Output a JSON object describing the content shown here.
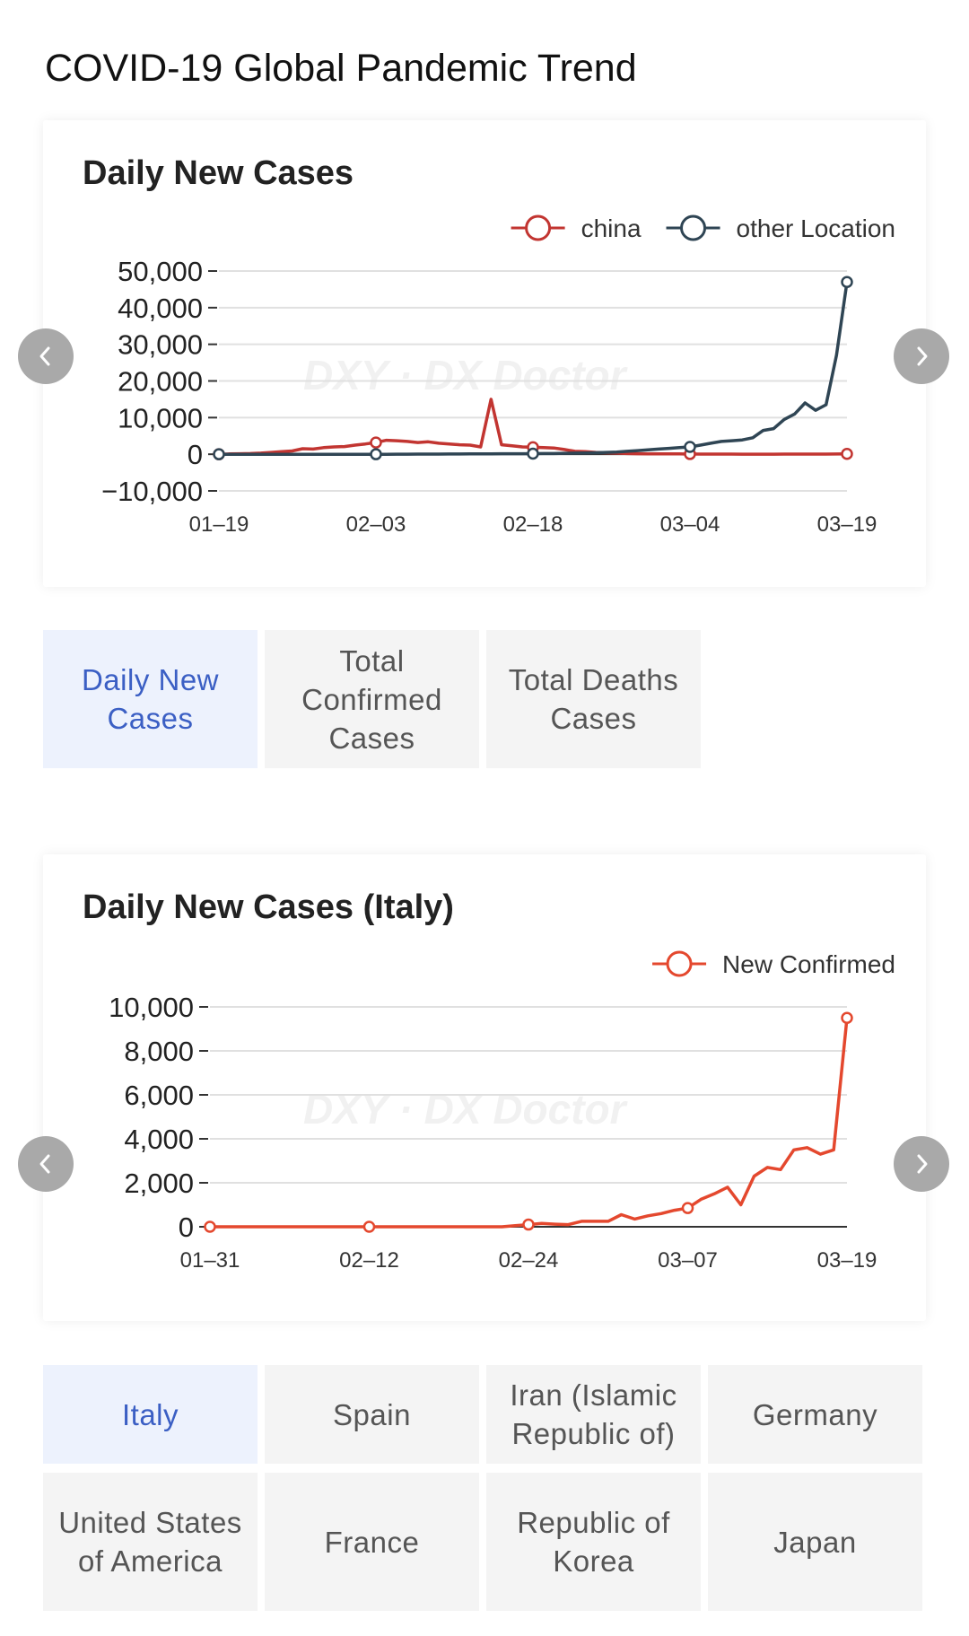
{
  "page": {
    "title": "COVID-19 Global Pandemic Trend"
  },
  "watermark": "DXY · DX Doctor",
  "chart1": {
    "title": "Daily New Cases",
    "colors": {
      "china": "#c23531",
      "other": "#2f4554"
    }
  },
  "chart2": {
    "title": "Daily New Cases (Italy)",
    "colors": {
      "new_confirmed": "#e4482e"
    }
  },
  "metric_tabs": [
    {
      "label": "Daily New Cases",
      "active": true
    },
    {
      "label": "Total Confirmed Cases",
      "active": false
    },
    {
      "label": "Total Deaths Cases",
      "active": false
    }
  ],
  "country_tabs": [
    {
      "label": "Italy",
      "active": true
    },
    {
      "label": "Spain",
      "active": false
    },
    {
      "label": "Iran (Islamic Republic of)",
      "active": false
    },
    {
      "label": "Germany",
      "active": false
    },
    {
      "label": "United States of America",
      "active": false
    },
    {
      "label": "France",
      "active": false
    },
    {
      "label": "Republic of Korea",
      "active": false
    },
    {
      "label": "Japan",
      "active": false
    }
  ],
  "chart_data": [
    {
      "type": "line",
      "title": "Daily New Cases",
      "xlabel": "",
      "ylabel": "",
      "ylim": [
        -10000,
        50000
      ],
      "yticks": [
        50000,
        40000,
        30000,
        20000,
        10000,
        0,
        -10000
      ],
      "ytick_labels": [
        "50,000",
        "40,000",
        "30,000",
        "20,000",
        "10,000",
        "0",
        "−10,000"
      ],
      "xtick_labels": [
        "01–19",
        "02–03",
        "02–18",
        "03–04",
        "03–19"
      ],
      "xtick_index": [
        0,
        15,
        30,
        45,
        60
      ],
      "grid": true,
      "legend_position": "top-right",
      "series": [
        {
          "name": "china",
          "values": [
            0,
            100,
            150,
            200,
            300,
            500,
            700,
            900,
            1500,
            1400,
            1800,
            2000,
            2100,
            2500,
            2800,
            3200,
            3800,
            3700,
            3500,
            3200,
            3400,
            3000,
            2800,
            2600,
            2500,
            2000,
            15000,
            2600,
            2300,
            2000,
            1900,
            1800,
            1700,
            1300,
            800,
            700,
            500,
            400,
            300,
            200,
            150,
            120,
            100,
            90,
            80,
            60,
            50,
            40,
            30,
            30,
            25,
            20,
            20,
            25,
            30,
            35,
            40,
            45,
            50,
            60,
            100
          ]
        },
        {
          "name": "other Location",
          "values": [
            0,
            0,
            0,
            0,
            0,
            0,
            0,
            0,
            0,
            0,
            0,
            0,
            0,
            0,
            0,
            0,
            0,
            10,
            20,
            30,
            40,
            50,
            60,
            70,
            80,
            100,
            120,
            130,
            140,
            150,
            160,
            180,
            200,
            250,
            300,
            350,
            400,
            500,
            600,
            800,
            1000,
            1200,
            1400,
            1600,
            1800,
            2000,
            2500,
            3000,
            3500,
            3700,
            3900,
            4500,
            6500,
            7000,
            9500,
            11000,
            14000,
            12000,
            13500,
            27000,
            47000
          ]
        }
      ]
    },
    {
      "type": "line",
      "title": "Daily New Cases (Italy)",
      "xlabel": "",
      "ylabel": "",
      "ylim": [
        0,
        10000
      ],
      "yticks": [
        10000,
        8000,
        6000,
        4000,
        2000,
        0
      ],
      "ytick_labels": [
        "10,000",
        "8,000",
        "6,000",
        "4,000",
        "2,000",
        "0"
      ],
      "xtick_labels": [
        "01–31",
        "02–12",
        "02–24",
        "03–07",
        "03–19"
      ],
      "xtick_index": [
        0,
        12,
        24,
        36,
        48
      ],
      "grid": true,
      "legend_position": "top-right",
      "series": [
        {
          "name": "New Confirmed",
          "values": [
            0,
            0,
            0,
            0,
            0,
            0,
            0,
            0,
            0,
            0,
            0,
            0,
            0,
            0,
            0,
            0,
            0,
            0,
            0,
            0,
            0,
            0,
            0,
            50,
            100,
            150,
            120,
            100,
            250,
            250,
            250,
            550,
            350,
            500,
            600,
            750,
            850,
            1250,
            1500,
            1800,
            1000,
            2300,
            2700,
            2600,
            3500,
            3600,
            3300,
            3500,
            9500
          ]
        }
      ]
    }
  ]
}
